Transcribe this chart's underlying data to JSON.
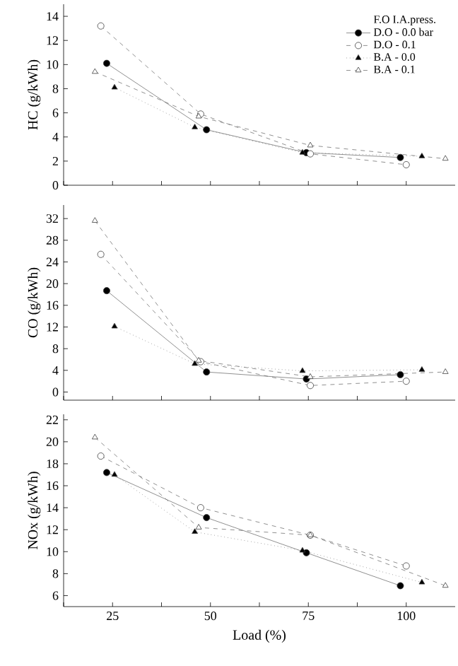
{
  "chart_data": [
    {
      "type": "line",
      "ylabel": "HC (g/kWh)",
      "legend_title": "F.O  I.A.press.",
      "legend": "top right",
      "tick_labels": "y",
      "xlim": [
        12.5,
        112.5
      ],
      "xticks": [
        {
          "value": 12.5,
          "label": null
        },
        {
          "value": 25,
          "label": null
        },
        {
          "value": 37.5,
          "label": null
        },
        {
          "value": 50,
          "label": null
        },
        {
          "value": 62.5,
          "label": null
        },
        {
          "value": 75,
          "label": null
        },
        {
          "value": 87.5,
          "label": null
        },
        {
          "value": 100,
          "label": null
        }
      ],
      "ylim": [
        0,
        15
      ],
      "yticks": [
        0,
        2,
        4,
        6,
        8,
        10,
        12,
        14
      ],
      "series": [
        {
          "name": "D.O - 0.0 bar",
          "color": "#000000",
          "marker": "circle",
          "line_style": "solid",
          "x": [
            23.5,
            49,
            74.5,
            98.5
          ],
          "values": [
            10.1,
            4.6,
            2.7,
            2.3
          ]
        },
        {
          "name": "D.O - 0.1",
          "color": "#ffffff",
          "marker": "circle",
          "line_style": "dashed",
          "x": [
            22,
            47.5,
            75.5,
            100
          ],
          "values": [
            13.2,
            5.9,
            2.6,
            1.7
          ]
        },
        {
          "name": "B.A - 0.0",
          "color": "#000000",
          "marker": "triangle",
          "line_style": "dotted",
          "x": [
            25.5,
            46,
            73.5,
            104
          ],
          "values": [
            8.1,
            4.8,
            2.7,
            2.4
          ]
        },
        {
          "name": "B.A - 0.1",
          "color": "#ffffff",
          "marker": "triangle",
          "line_style": "dashed",
          "x": [
            20.5,
            47,
            75.5,
            110
          ],
          "values": [
            9.4,
            5.7,
            3.3,
            2.2
          ]
        }
      ]
    },
    {
      "type": "line",
      "ylabel": "CO (g/kWh)",
      "tick_labels": "y",
      "xlim": [
        12.5,
        112.5
      ],
      "xticks": [
        {
          "value": 12.5,
          "label": null
        },
        {
          "value": 25,
          "label": null
        },
        {
          "value": 37.5,
          "label": null
        },
        {
          "value": 50,
          "label": null
        },
        {
          "value": 62.5,
          "label": null
        },
        {
          "value": 75,
          "label": null
        },
        {
          "value": 87.5,
          "label": null
        },
        {
          "value": 100,
          "label": null
        }
      ],
      "ylim": [
        -1.5,
        34.5
      ],
      "yticks": [
        0,
        4,
        8,
        12,
        16,
        20,
        24,
        28,
        32
      ],
      "series": [
        {
          "color": "#000000",
          "marker": "circle",
          "line_style": "solid",
          "x": [
            23.5,
            49,
            74.5,
            98.5
          ],
          "values": [
            18.7,
            3.7,
            2.4,
            3.2
          ]
        },
        {
          "color": "#ffffff",
          "marker": "circle",
          "line_style": "dashed",
          "x": [
            22,
            47.5,
            75.5,
            100
          ],
          "values": [
            25.4,
            5.6,
            1.2,
            2.0
          ]
        },
        {
          "color": "#000000",
          "marker": "triangle",
          "line_style": "dotted",
          "x": [
            25.5,
            46,
            73.5,
            104
          ],
          "values": [
            12.1,
            5.2,
            3.9,
            4.1
          ]
        },
        {
          "color": "#ffffff",
          "marker": "triangle",
          "line_style": "dashed",
          "x": [
            20.5,
            47,
            75.5,
            110
          ],
          "values": [
            31.6,
            5.8,
            2.8,
            3.7
          ]
        }
      ]
    },
    {
      "type": "line",
      "ylabel": "NOx (g/kWh)",
      "xlabel": "Load (%)",
      "xlim": [
        12.5,
        112.5
      ],
      "xticks": [
        {
          "value": 12.5,
          "label": null
        },
        25,
        {
          "value": 37.5,
          "label": null
        },
        50,
        {
          "value": 62.5,
          "label": null
        },
        75,
        {
          "value": 87.5,
          "label": null
        },
        100
      ],
      "ylim": [
        5,
        22.5
      ],
      "yticks": [
        6,
        8,
        10,
        12,
        14,
        16,
        18,
        20,
        22
      ],
      "series": [
        {
          "color": "#000000",
          "marker": "circle",
          "line_style": "solid",
          "x": [
            23.5,
            49,
            74.5,
            98.5
          ],
          "values": [
            17.2,
            13.1,
            9.9,
            6.9
          ]
        },
        {
          "color": "#ffffff",
          "marker": "circle",
          "line_style": "dashed",
          "x": [
            22,
            47.5,
            75.5,
            100
          ],
          "values": [
            18.7,
            14.0,
            11.5,
            8.7
          ]
        },
        {
          "color": "#000000",
          "marker": "triangle",
          "line_style": "dotted",
          "x": [
            25.5,
            46,
            73.5,
            104
          ],
          "values": [
            17.0,
            11.8,
            10.1,
            7.2
          ]
        },
        {
          "color": "#ffffff",
          "marker": "triangle",
          "line_style": "dashed",
          "x": [
            20.5,
            47,
            75.5,
            110
          ],
          "values": [
            20.4,
            12.2,
            11.5,
            6.9
          ]
        }
      ]
    }
  ]
}
